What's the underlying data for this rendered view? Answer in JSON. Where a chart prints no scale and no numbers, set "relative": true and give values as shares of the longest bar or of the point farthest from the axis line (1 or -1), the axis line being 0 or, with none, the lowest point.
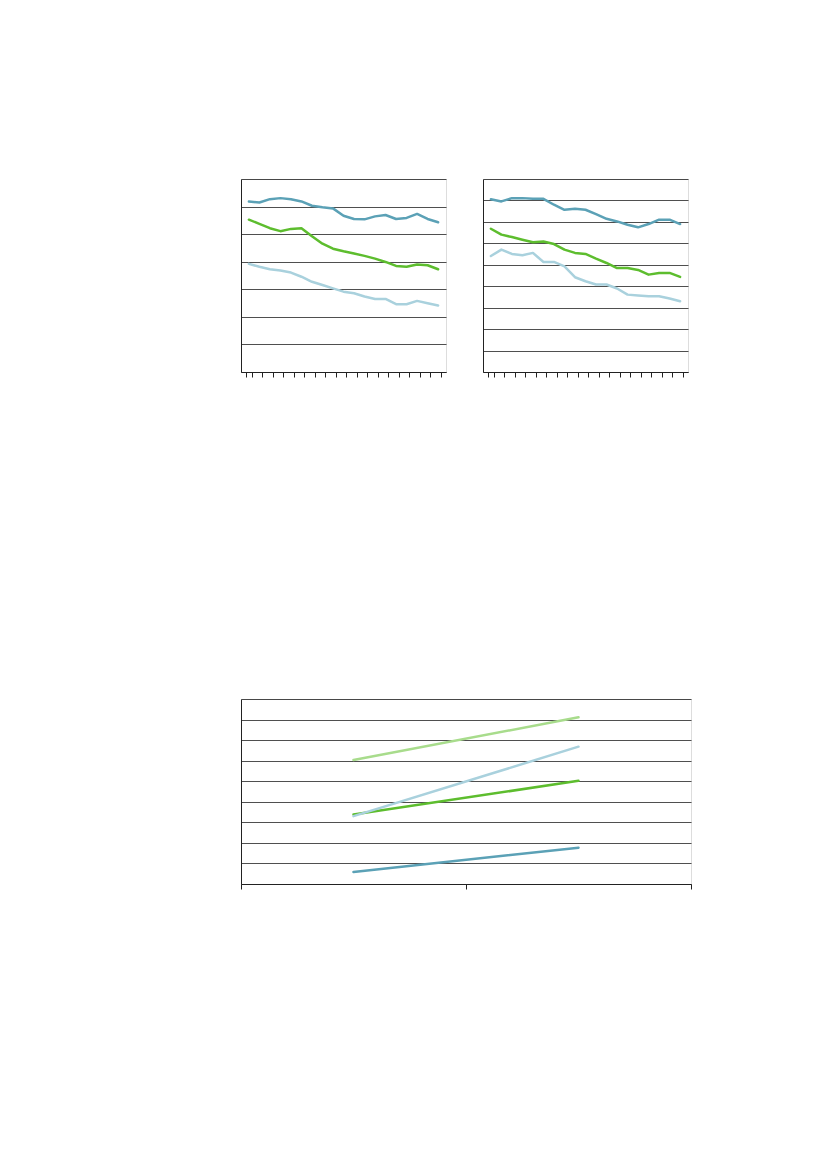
{
  "chart_data": [
    {
      "type": "line",
      "relative": true,
      "grid": "y",
      "categories": [
        null,
        null,
        null,
        null,
        null,
        null,
        null,
        null,
        null,
        null,
        null,
        null,
        null,
        null,
        null,
        null,
        null,
        null,
        null
      ],
      "series": [
        {
          "color": "#5ba1b6",
          "values": [
            0.98,
            0.975,
            0.994,
            1.0,
            0.994,
            0.981,
            0.956,
            0.947,
            0.941,
            0.899,
            0.88,
            0.878,
            0.895,
            0.903,
            0.88,
            0.886,
            0.909,
            0.88,
            0.861
          ]
        },
        {
          "color": "#5dbd2e",
          "values": [
            0.876,
            0.852,
            0.827,
            0.81,
            0.823,
            0.827,
            0.781,
            0.738,
            0.709,
            0.694,
            0.681,
            0.668,
            0.652,
            0.633,
            0.61,
            0.605,
            0.618,
            0.614,
            0.591
          ]
        },
        {
          "color": "#a9d1dd",
          "values": [
            0.622,
            0.605,
            0.591,
            0.584,
            0.572,
            0.548,
            0.519,
            0.5,
            0.481,
            0.462,
            0.453,
            0.434,
            0.42,
            0.42,
            0.39,
            0.39,
            0.409,
            0.395,
            0.382
          ]
        }
      ]
    },
    {
      "type": "line",
      "relative": true,
      "grid": "y",
      "categories": [
        null,
        null,
        null,
        null,
        null,
        null,
        null,
        null,
        null,
        null,
        null,
        null,
        null,
        null,
        null,
        null,
        null,
        null,
        null
      ],
      "series": [
        {
          "color": "#5ba1b6",
          "values": [
            0.994,
            0.981,
            1.0,
            1.0,
            0.996,
            0.996,
            0.962,
            0.933,
            0.939,
            0.933,
            0.908,
            0.881,
            0.866,
            0.847,
            0.832,
            0.851,
            0.876,
            0.876,
            0.851
          ]
        },
        {
          "color": "#5dbd2e",
          "values": [
            0.824,
            0.79,
            0.776,
            0.761,
            0.746,
            0.751,
            0.736,
            0.704,
            0.685,
            0.679,
            0.652,
            0.627,
            0.598,
            0.598,
            0.587,
            0.56,
            0.57,
            0.57,
            0.547
          ]
        },
        {
          "color": "#a9d1dd",
          "values": [
            0.667,
            0.704,
            0.679,
            0.671,
            0.685,
            0.633,
            0.633,
            0.608,
            0.545,
            0.522,
            0.503,
            0.503,
            0.48,
            0.445,
            0.44,
            0.436,
            0.436,
            0.423,
            0.407
          ]
        }
      ]
    },
    {
      "type": "line",
      "relative": true,
      "grid": "y",
      "categories": [
        null,
        null
      ],
      "series": [
        {
          "color": "#5ba1b6",
          "values": [
            0.072,
            0.218
          ]
        },
        {
          "color": "#5dbd2e",
          "values": [
            0.417,
            0.619
          ]
        },
        {
          "color": "#a9d1dd",
          "values": [
            0.407,
            0.824
          ]
        },
        {
          "color": "#a8dc8c",
          "values": [
            0.744,
            1.0
          ]
        }
      ]
    }
  ]
}
